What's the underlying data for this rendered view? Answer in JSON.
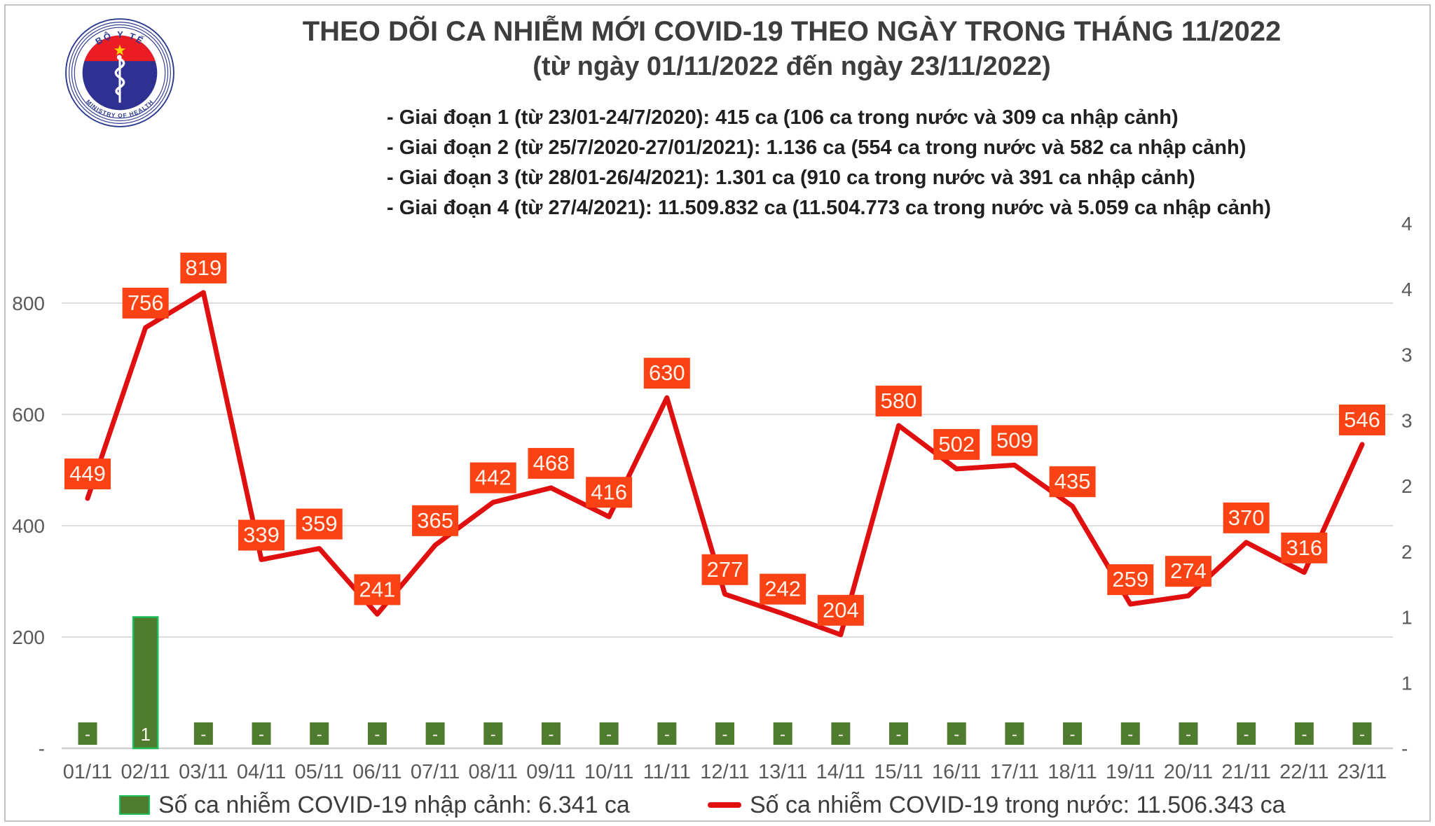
{
  "logo": {
    "top_text": "BỘ Y TẾ",
    "bottom_text": "MINISTRY OF HEALTH"
  },
  "header": {
    "title": "THEO DÕI CA NHIỄM MỚI COVID-19 THEO NGÀY TRONG THÁNG 11/2022",
    "subtitle": "(từ ngày 01/11/2022 đến ngày 23/11/2022)",
    "notes": [
      "- Giai đoạn 1 (từ 23/01-24/7/2020): 415 ca (106 ca trong nước và 309 ca nhập cảnh)",
      "- Giai đoạn 2 (từ 25/7/2020-27/01/2021): 1.136 ca (554 ca trong nước và 582 ca nhập cảnh)",
      "- Giai đoạn 3 (từ 28/01-26/4/2021): 1.301 ca (910 ca trong nước và 391 ca nhập cảnh)",
      "- Giai đoạn 4 (từ 27/4/2021): 11.509.832 ca (11.504.773 ca trong nước và 5.059 ca nhập cảnh)"
    ]
  },
  "chart_data": {
    "type": "combo",
    "title": "",
    "grid": true,
    "legend_position": "bottom",
    "categories": [
      "01/11",
      "02/11",
      "03/11",
      "04/11",
      "05/11",
      "06/11",
      "07/11",
      "08/11",
      "09/11",
      "10/11",
      "11/11",
      "12/11",
      "13/11",
      "14/11",
      "15/11",
      "16/11",
      "17/11",
      "18/11",
      "19/11",
      "20/11",
      "21/11",
      "22/11",
      "23/11"
    ],
    "series": [
      {
        "name": "Số ca nhiễm COVID-19 nhập cảnh",
        "legend_label": "Số ca nhiễm COVID-19 nhập cảnh: 6.341 ca",
        "type": "bar",
        "axis": "right",
        "color": "#4f7b2f",
        "border_color": "#1dbd57",
        "label_text_color": "#fdf6ec",
        "values": [
          0,
          1,
          0,
          0,
          0,
          0,
          0,
          0,
          0,
          0,
          0,
          0,
          0,
          0,
          0,
          0,
          0,
          0,
          0,
          0,
          0,
          0,
          0
        ],
        "labels": [
          "-",
          "1",
          "-",
          "-",
          "-",
          "-",
          "-",
          "-",
          "-",
          "-",
          "-",
          "-",
          "-",
          "-",
          "-",
          "-",
          "-",
          "-",
          "-",
          "-",
          "-",
          "-",
          "-"
        ]
      },
      {
        "name": "Số ca nhiễm COVID-19 trong nước",
        "legend_label": "Số ca nhiễm COVID-19 trong nước: 11.506.343 ca",
        "type": "line",
        "axis": "left",
        "color": "#e01010",
        "label_bg": "#fa4214",
        "label_text_color": "#fdf3ea",
        "values": [
          449,
          756,
          819,
          339,
          359,
          241,
          365,
          442,
          468,
          416,
          630,
          277,
          242,
          204,
          580,
          502,
          509,
          435,
          259,
          274,
          370,
          316,
          546
        ]
      }
    ],
    "left_axis": {
      "min": 0,
      "max": 900,
      "gridline_step": 200,
      "ticks": [
        {
          "value": 0,
          "label": "-"
        },
        {
          "value": 200,
          "label": "200"
        },
        {
          "value": 400,
          "label": "400"
        },
        {
          "value": 600,
          "label": "600"
        },
        {
          "value": 800,
          "label": "800"
        }
      ]
    },
    "right_axis": {
      "min": 0,
      "max": 4,
      "step": 0.5,
      "ticks": [
        {
          "value": 0,
          "label": "-"
        },
        {
          "value": 0.5,
          "label": "1"
        },
        {
          "value": 1,
          "label": "1"
        },
        {
          "value": 1.5,
          "label": "2"
        },
        {
          "value": 2,
          "label": "2"
        },
        {
          "value": 2.5,
          "label": "3"
        },
        {
          "value": 3,
          "label": "3"
        },
        {
          "value": 3.5,
          "label": "4"
        },
        {
          "value": 4,
          "label": "4"
        }
      ]
    },
    "colors": {
      "gridline": "#dcdcdc",
      "axis_line": "#cfcfcf",
      "tick_label": "#595959"
    }
  }
}
